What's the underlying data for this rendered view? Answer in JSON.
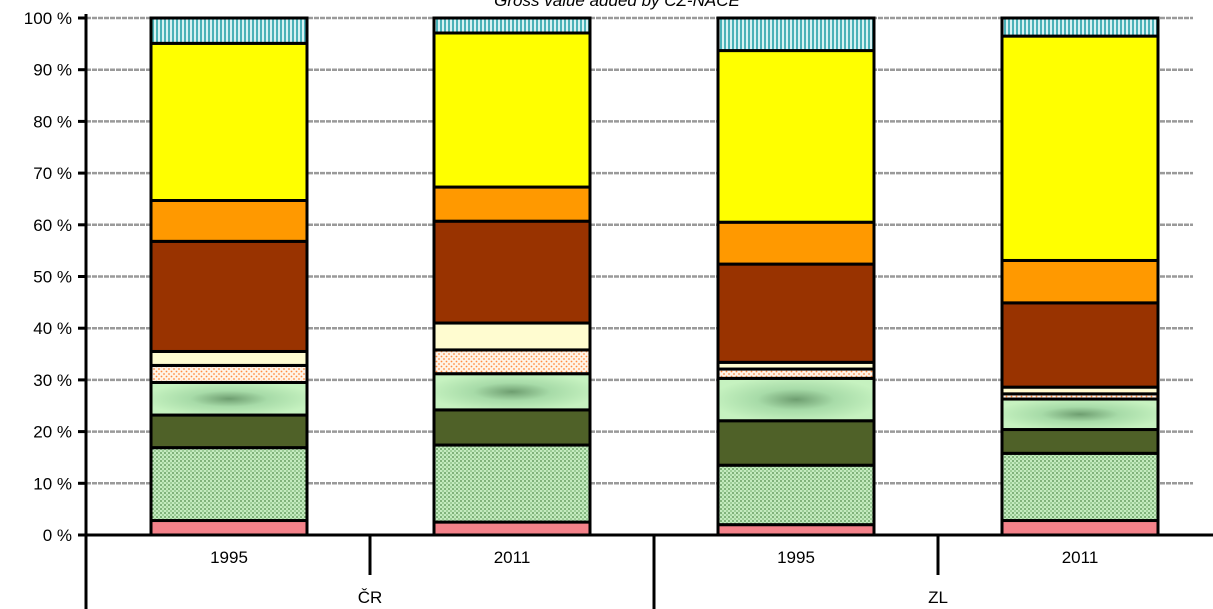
{
  "chart_data": {
    "type": "bar",
    "stacked": true,
    "title": "Gross value added by CZ-NACE",
    "ylim": [
      0,
      100
    ],
    "y_ticks": [
      "0 %",
      "10 %",
      "20 %",
      "30 %",
      "40 %",
      "50 %",
      "60 %",
      "70 %",
      "80 %",
      "90 %",
      "100 %"
    ],
    "grid": true,
    "legend": "none",
    "groups": [
      {
        "label": "ČR",
        "categories": [
          "1995",
          "2011"
        ]
      },
      {
        "label": "ZL",
        "categories": [
          "1995",
          "2011"
        ]
      }
    ],
    "categories": [
      "1995",
      "2011",
      "1995",
      "2011"
    ],
    "segment_colors": [
      "#f4828a",
      "#b9e6b2",
      "#4f6128",
      "#c6f2c0",
      "#fde5c8",
      "#fffcd0",
      "#993300",
      "#ff9900",
      "#ffff00",
      "#9bd9dc"
    ],
    "series": [
      {
        "values": [
          2.8,
          2.5,
          2.0,
          2.8
        ]
      },
      {
        "values": [
          14.1,
          14.9,
          11.5,
          13.0
        ]
      },
      {
        "values": [
          6.3,
          6.8,
          8.6,
          4.6
        ]
      },
      {
        "values": [
          6.3,
          7.0,
          8.2,
          5.9
        ]
      },
      {
        "values": [
          3.3,
          4.6,
          1.8,
          1.0
        ]
      },
      {
        "values": [
          2.7,
          5.2,
          1.3,
          1.3
        ]
      },
      {
        "values": [
          21.3,
          19.7,
          19.0,
          16.3
        ]
      },
      {
        "values": [
          7.9,
          6.6,
          8.1,
          8.2
        ]
      },
      {
        "values": [
          30.4,
          29.8,
          33.2,
          43.4
        ]
      },
      {
        "values": [
          4.9,
          2.9,
          6.3,
          3.5
        ]
      }
    ]
  }
}
